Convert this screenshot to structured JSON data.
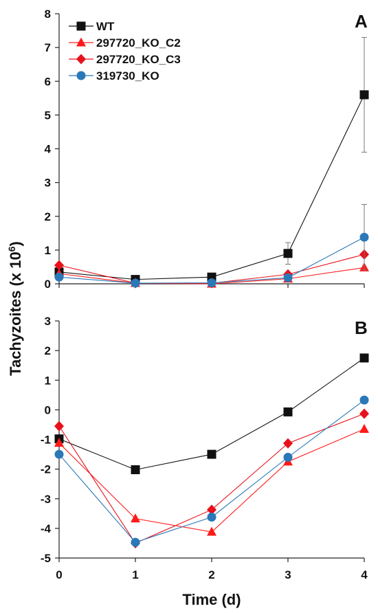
{
  "figure": {
    "ylabel_main": "Tachyzoites (x 10",
    "ylabel_sup": "6",
    "ylabel_close": ")",
    "xlabel": "Time (d)",
    "colors": {
      "wt": "#111111",
      "c2": "#ff1a1a",
      "c3": "#e8101a",
      "ko": "#2a78b8",
      "axis": "#222222"
    }
  },
  "chart_data": [
    {
      "panel": "A",
      "type": "line",
      "x": [
        0,
        1,
        2,
        3,
        4
      ],
      "xticks": [
        "0",
        "1",
        "2",
        "3",
        "4"
      ],
      "ylim": [
        0,
        8
      ],
      "yticks": [
        "0",
        "1",
        "2",
        "3",
        "4",
        "5",
        "6",
        "7",
        "8"
      ],
      "legend_position": "top-left",
      "series": [
        {
          "name": "WT",
          "marker": "square",
          "color": "#111111",
          "values": [
            0.35,
            0.13,
            0.2,
            0.9,
            5.6
          ],
          "error": [
            0,
            0,
            0,
            0.32,
            1.7
          ]
        },
        {
          "name": "297720_KO_C2",
          "marker": "triangle",
          "color": "#ff1a1a",
          "values": [
            0.3,
            0.02,
            0.0,
            0.15,
            0.48
          ],
          "error": [
            0,
            0,
            0,
            0,
            0
          ]
        },
        {
          "name": "297720_KO_C3",
          "marker": "diamond",
          "color": "#e8101a",
          "values": [
            0.55,
            0.02,
            0.02,
            0.28,
            0.87
          ],
          "error": [
            0,
            0,
            0,
            0,
            0
          ]
        },
        {
          "name": "319730_KO",
          "marker": "circle",
          "color": "#2a78b8",
          "values": [
            0.2,
            0.02,
            0.03,
            0.18,
            1.38
          ],
          "error": [
            0,
            0,
            0,
            0,
            0.97
          ]
        }
      ]
    },
    {
      "panel": "B",
      "type": "line",
      "x": [
        0,
        1,
        2,
        3,
        4
      ],
      "xticks": [
        "0",
        "1",
        "2",
        "3",
        "4"
      ],
      "ylim": [
        -5,
        3
      ],
      "yticks": [
        "3",
        "2",
        "1",
        "0",
        "-1",
        "-2",
        "-3",
        "-4",
        "-5"
      ],
      "series": [
        {
          "marker": "square",
          "color": "#111111",
          "values": [
            -0.98,
            -2.02,
            -1.5,
            -0.07,
            1.75
          ]
        },
        {
          "marker": "triangle",
          "color": "#ff1a1a",
          "values": [
            -1.12,
            -3.67,
            -4.12,
            -1.75,
            -0.65
          ]
        },
        {
          "marker": "diamond",
          "color": "#e8101a",
          "values": [
            -0.55,
            -4.5,
            -3.37,
            -1.13,
            -0.13
          ]
        },
        {
          "marker": "circle",
          "color": "#2a78b8",
          "values": [
            -1.5,
            -4.47,
            -3.62,
            -1.6,
            0.33
          ]
        }
      ]
    }
  ]
}
